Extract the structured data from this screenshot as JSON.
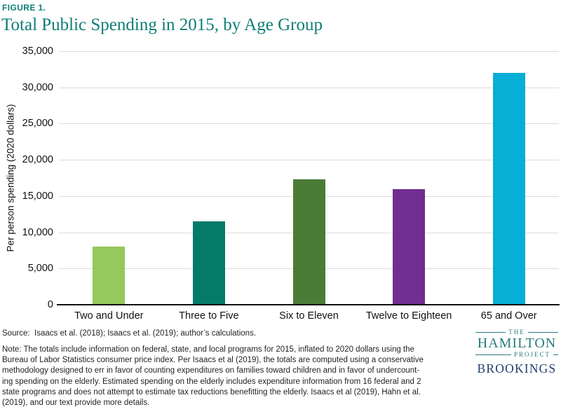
{
  "header": {
    "figure_label": "FIGURE 1.",
    "title": "Total Public Spending in 2015, by Age Group"
  },
  "chart_data": {
    "type": "bar",
    "title": "Total Public Spending in 2015, by Age Group",
    "categories": [
      "Two and Under",
      "Three to Five",
      "Six to Eleven",
      "Twelve to Eighteen",
      "65 and Over"
    ],
    "values": [
      8000,
      11500,
      17300,
      16000,
      32000
    ],
    "bar_colors": [
      "#95c85d",
      "#057a68",
      "#4a7c35",
      "#702e90",
      "#07aed6"
    ],
    "xlabel": "",
    "ylabel": "Per person spending (2020 dollars)",
    "ylim": [
      0,
      35000
    ],
    "ytick_interval": 5000,
    "ytick_labels": [
      "0",
      "5,000",
      "10,000",
      "15,000",
      "20,000",
      "25,000",
      "30,000",
      "35,000"
    ],
    "grid": true,
    "legend": false
  },
  "footer": {
    "source": "Source:  Isaacs et al. (2018); Isaacs et al. (2019); author’s calculations.",
    "note_lines": [
      "Note: The totals include information on federal, state, and local programs for 2015, inflated to 2020 dollars using the",
      "Bureau of Labor Statistics consumer price index. Per Isaacs et al (2019), the totals are computed using a conservative",
      "methodology designed to err in favor of counting expenditures on families toward children and in favor of undercount-",
      "ing spending on the elderly. Estimated spending on the elderly includes expenditure information from 16 federal and 2",
      "state programs and does not attempt to estimate tax reductions benefitting the elderly. Isaacs et al (2019), Hahn et al.",
      "(2019), and our text provide more details."
    ]
  },
  "logo": {
    "the": "THE",
    "hamilton": "HAMILTON",
    "project": "PROJECT",
    "brookings": "BROOKINGS",
    "teal": "#2a7c80",
    "navy": "#1e3e6e"
  },
  "colors": {
    "title_teal": "#0f7d76",
    "gridline": "#dcdcdc",
    "axis": "#111111",
    "text": "#231f20"
  }
}
